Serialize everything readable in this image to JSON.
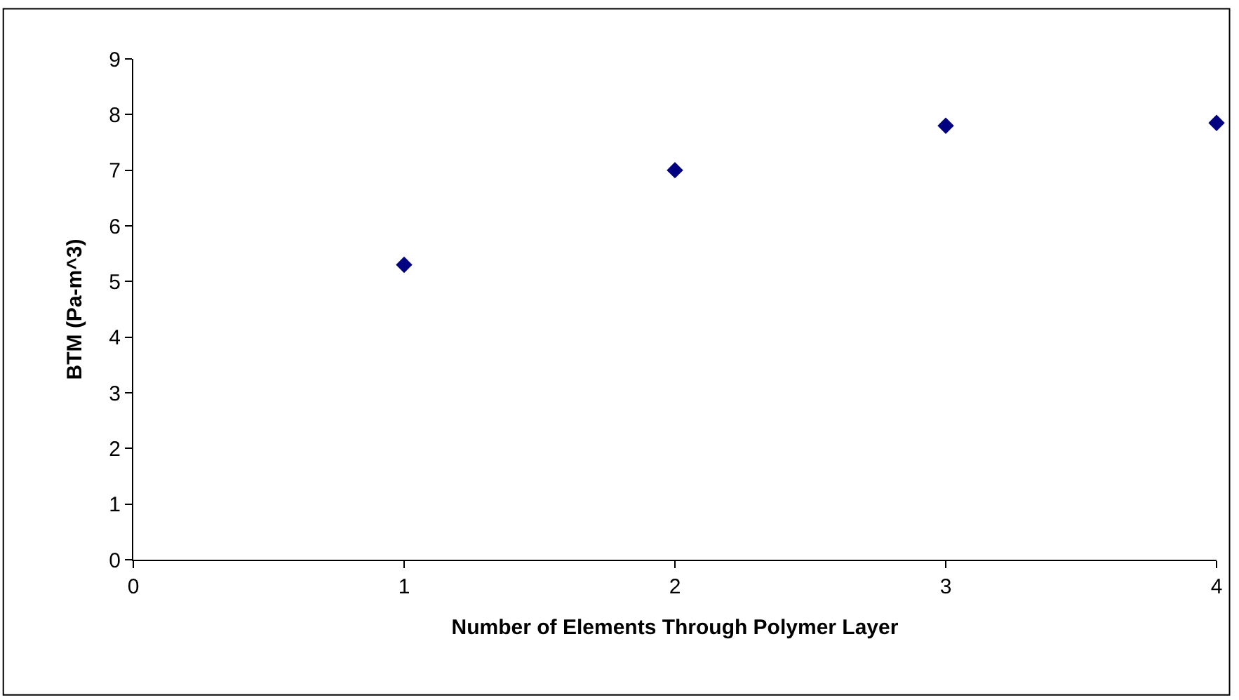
{
  "chart_data": {
    "type": "scatter",
    "xlabel": "Number of Elements Through Polymer Layer",
    "ylabel": "BTM (Pa-m^3)",
    "x": [
      1,
      2,
      3,
      4
    ],
    "series": [
      {
        "color": "#000080",
        "values": [
          5.3,
          7.0,
          7.8,
          7.85
        ]
      }
    ],
    "xlim": [
      0,
      4
    ],
    "xticks": [
      0,
      1,
      2,
      3,
      4
    ],
    "ylim": [
      0,
      9
    ],
    "yticks": [
      0,
      1,
      2,
      3,
      4,
      5,
      6,
      7,
      8,
      9
    ],
    "grid": false,
    "legend": false,
    "marker": "diamond"
  }
}
